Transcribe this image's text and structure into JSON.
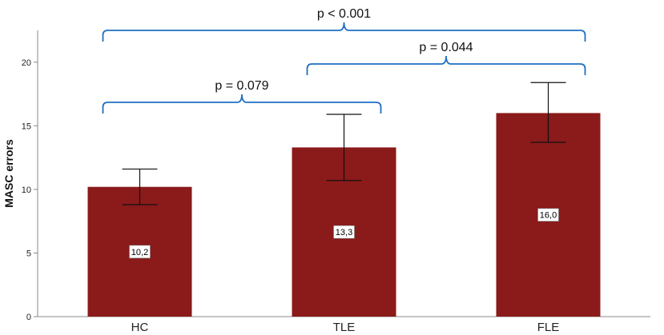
{
  "chart_data": {
    "type": "bar",
    "categories": [
      "HC",
      "TLE",
      "FLE"
    ],
    "values": [
      10.2,
      13.3,
      16.0
    ],
    "data_labels": [
      "10,2",
      "13,3",
      "16,0"
    ],
    "error_bars": [
      {
        "low": 8.8,
        "high": 11.6
      },
      {
        "low": 10.7,
        "high": 15.9
      },
      {
        "low": 13.7,
        "high": 18.4
      }
    ],
    "title": "",
    "xlabel": "",
    "ylabel": "MASC errors",
    "ylim": [
      0,
      22.5
    ],
    "yticks": [
      0,
      5,
      10,
      15,
      20
    ],
    "grid": false,
    "bar_color": "#8b1a1a",
    "bracket_color": "#1f6fc5",
    "comparisons": [
      {
        "from": 0,
        "to": 2,
        "label": "p < 0.001",
        "level": 3
      },
      {
        "from": 1,
        "to": 2,
        "label": "p = 0.044",
        "level": 2
      },
      {
        "from": 0,
        "to": 1,
        "label": "p = 0.079",
        "level": 1
      }
    ]
  }
}
